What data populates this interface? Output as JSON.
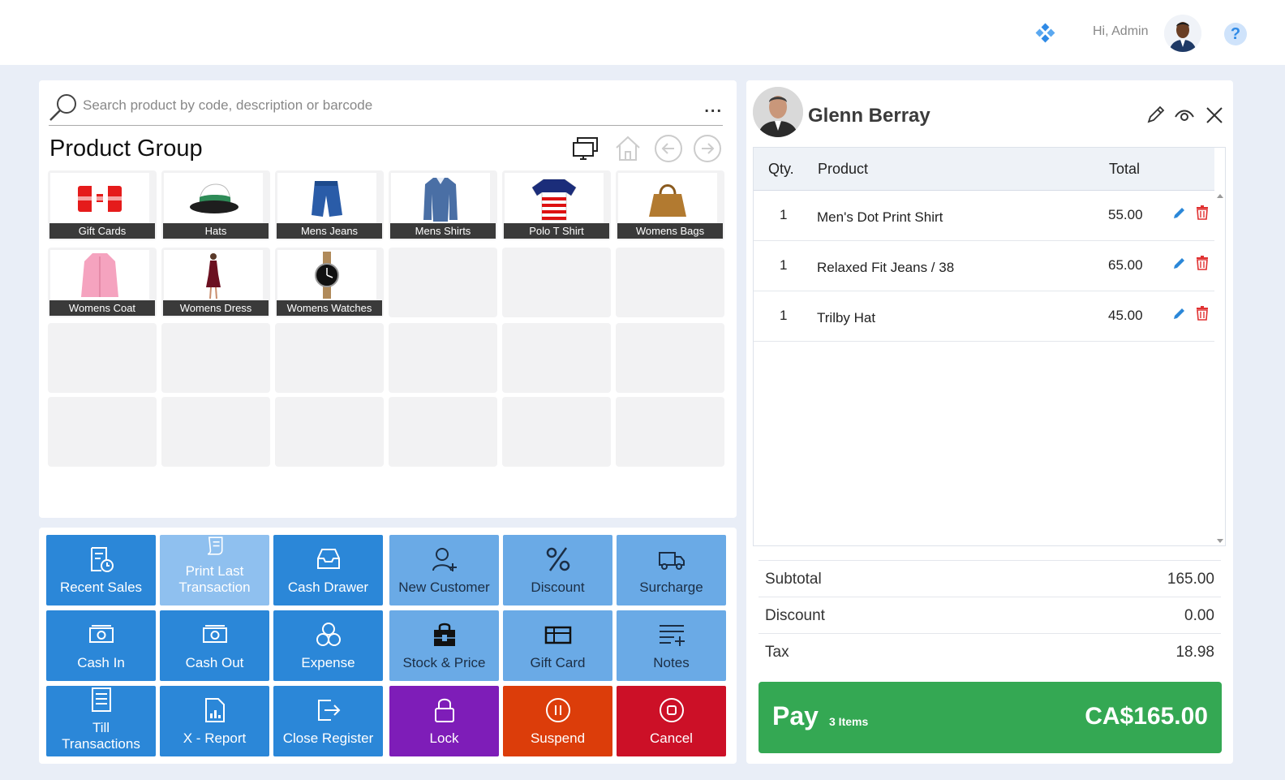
{
  "header": {
    "greeting": "Hi, Admin"
  },
  "search": {
    "placeholder": "Search product by code, description or barcode",
    "more": "..."
  },
  "product_group": {
    "title": "Product Group",
    "tiles": [
      {
        "label": "Gift Cards",
        "icon": "gift-card-icon"
      },
      {
        "label": "Hats",
        "icon": "hat-icon"
      },
      {
        "label": "Mens Jeans",
        "icon": "jeans-icon"
      },
      {
        "label": "Mens Shirts",
        "icon": "shirt-icon"
      },
      {
        "label": "Polo T Shirt",
        "icon": "polo-shirt-icon"
      },
      {
        "label": "Womens Bags",
        "icon": "handbag-icon"
      },
      {
        "label": "Womens Coat",
        "icon": "coat-icon"
      },
      {
        "label": "Womens Dress",
        "icon": "dress-icon"
      },
      {
        "label": "Womens Watches",
        "icon": "watch-icon"
      }
    ]
  },
  "actions": {
    "recent_sales": "Recent Sales",
    "print_last_1": "Print Last",
    "print_last_2": "Transaction",
    "cash_drawer": "Cash Drawer",
    "new_customer": "New Customer",
    "discount": "Discount",
    "surcharge": "Surcharge",
    "cash_in": "Cash In",
    "cash_out": "Cash Out",
    "expense": "Expense",
    "stock_price": "Stock & Price",
    "gift_card": "Gift Card",
    "notes": "Notes",
    "till_1": "Till",
    "till_2": "Transactions",
    "x_report": "X - Report",
    "close_register": "Close Register",
    "lock": "Lock",
    "suspend": "Suspend",
    "cancel": "Cancel"
  },
  "customer": {
    "name": "Glenn Berray"
  },
  "cart": {
    "headers": {
      "qty": "Qty.",
      "product": "Product",
      "total": "Total"
    },
    "items": [
      {
        "qty": "1",
        "product": "Men's Dot Print Shirt",
        "total": "55.00"
      },
      {
        "qty": "1",
        "product": "Relaxed Fit Jeans / 38",
        "total": "65.00"
      },
      {
        "qty": "1",
        "product": "Trilby Hat",
        "total": "45.00"
      }
    ]
  },
  "totals": {
    "subtotal_label": "Subtotal",
    "subtotal": "165.00",
    "discount_label": "Discount",
    "discount": "0.00",
    "tax_label": "Tax",
    "tax": "18.98"
  },
  "pay": {
    "label": "Pay",
    "count": "3 Items",
    "amount": "CA$165.00"
  },
  "colors": {
    "accent": "#2b87d8",
    "pay": "#34a853",
    "lock": "#7e1db8",
    "suspend": "#dc3d0a",
    "cancel": "#cc1027"
  }
}
